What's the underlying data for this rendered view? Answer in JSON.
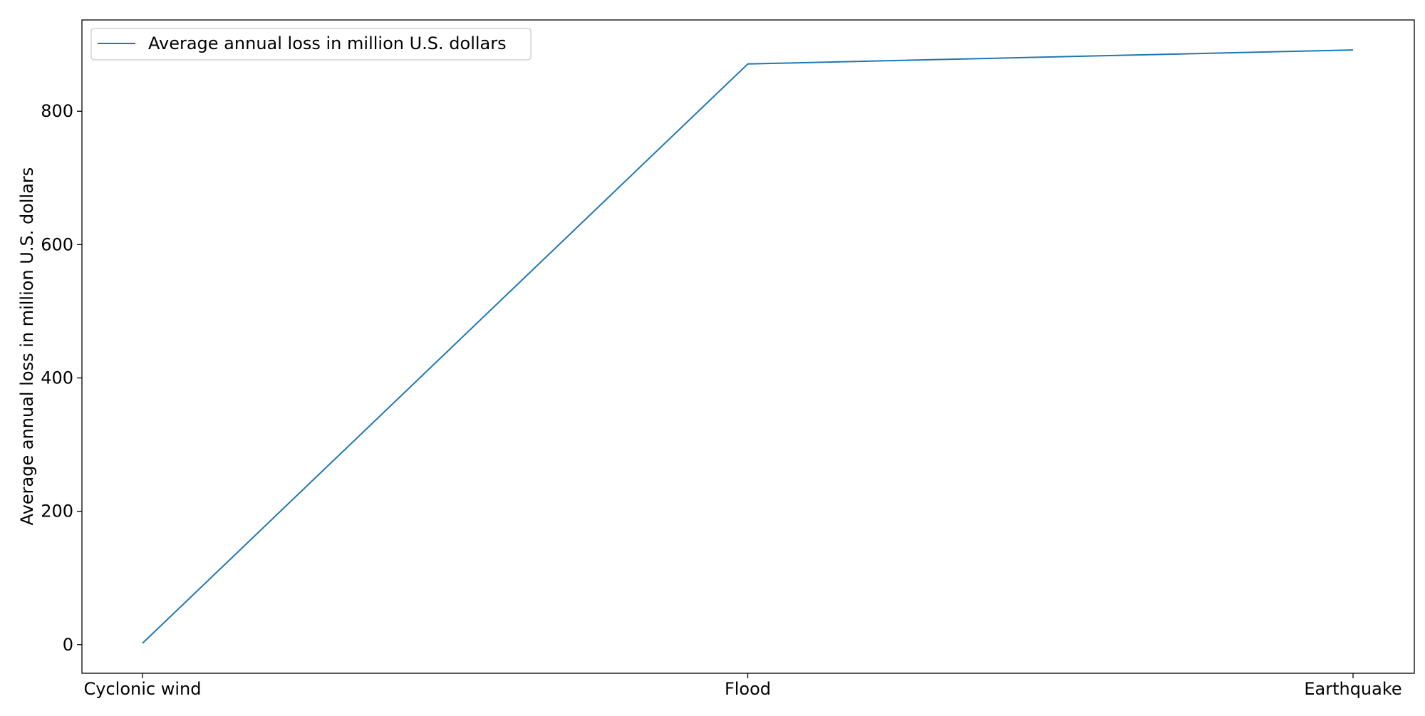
{
  "chart_data": {
    "type": "line",
    "categories": [
      "Cyclonic wind",
      "Flood",
      "Earthquake"
    ],
    "series": [
      {
        "name": "Average annual loss in million U.S. dollars",
        "values": [
          2,
          871,
          892
        ],
        "color": "#1f77b4"
      }
    ],
    "title": "",
    "xlabel": "",
    "ylabel": "Average annual loss in million U.S. dollars",
    "ylim": [
      -43,
      937
    ],
    "yticks": [
      0,
      200,
      400,
      600,
      800
    ],
    "grid": false,
    "legend_position": "upper-left"
  }
}
